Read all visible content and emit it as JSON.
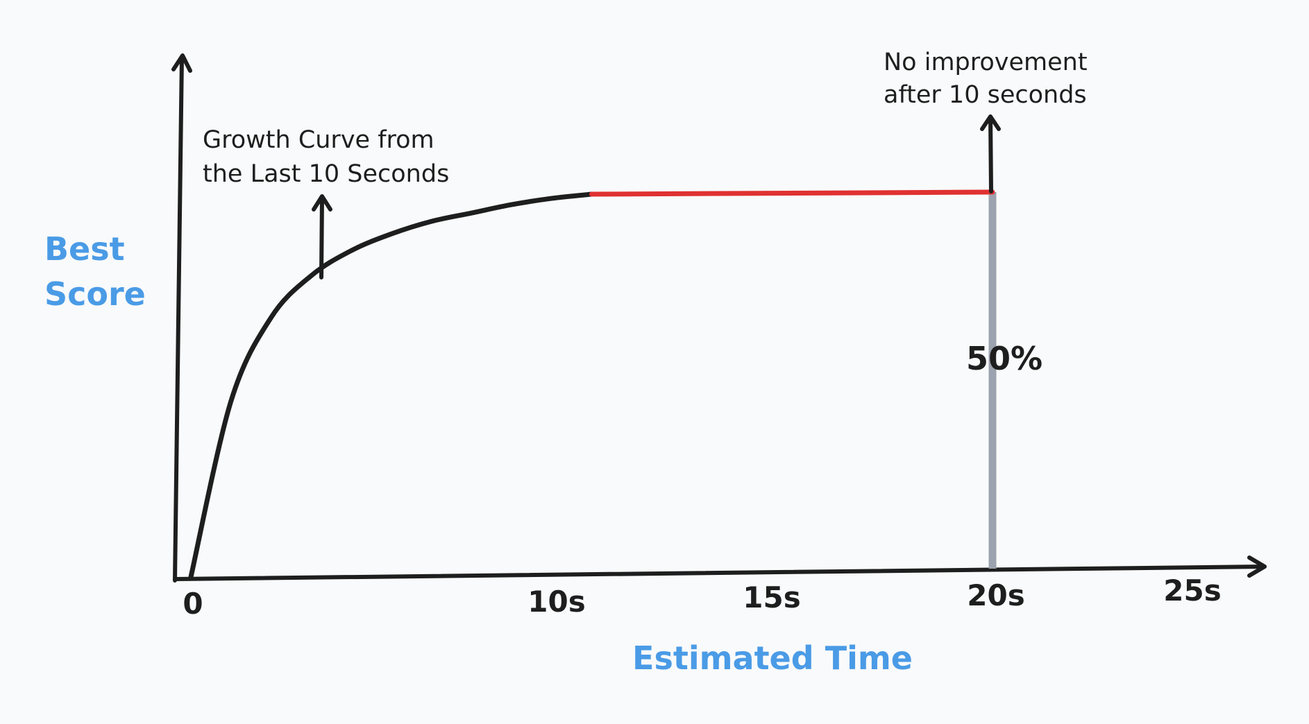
{
  "chart_data": {
    "type": "line",
    "xlabel": "Estimated Time",
    "ylabel_lines": [
      "Best",
      "Score"
    ],
    "x_ticks": [
      {
        "label": "0",
        "value": 0
      },
      {
        "label": "10s",
        "value": 10
      },
      {
        "label": "15s",
        "value": 15
      },
      {
        "label": "20s",
        "value": 20
      },
      {
        "label": "25s",
        "value": 25
      }
    ],
    "xlim": [
      0,
      25
    ],
    "growth_curve": {
      "x": [
        0,
        1,
        2,
        3,
        4,
        5,
        6,
        7,
        8,
        9,
        10
      ],
      "y": [
        0,
        0.42,
        0.62,
        0.72,
        0.78,
        0.82,
        0.85,
        0.87,
        0.89,
        0.905,
        0.915
      ]
    },
    "plateau": {
      "x": [
        10,
        20
      ],
      "y": [
        0.915,
        0.92
      ],
      "color": "#e03131"
    },
    "marker": {
      "x": 20,
      "label": "50%",
      "color": "#9ca3af"
    },
    "annotations": [
      {
        "id": "growth",
        "lines": [
          "Growth Curve from",
          "the Last 10 Seconds"
        ]
      },
      {
        "id": "no-improvement",
        "lines": [
          "No improvement",
          "after 10 seconds"
        ]
      }
    ],
    "colors": {
      "ink": "#1e1e1e",
      "axis_label": "#4a9be6",
      "background": "#f9fafb"
    }
  }
}
